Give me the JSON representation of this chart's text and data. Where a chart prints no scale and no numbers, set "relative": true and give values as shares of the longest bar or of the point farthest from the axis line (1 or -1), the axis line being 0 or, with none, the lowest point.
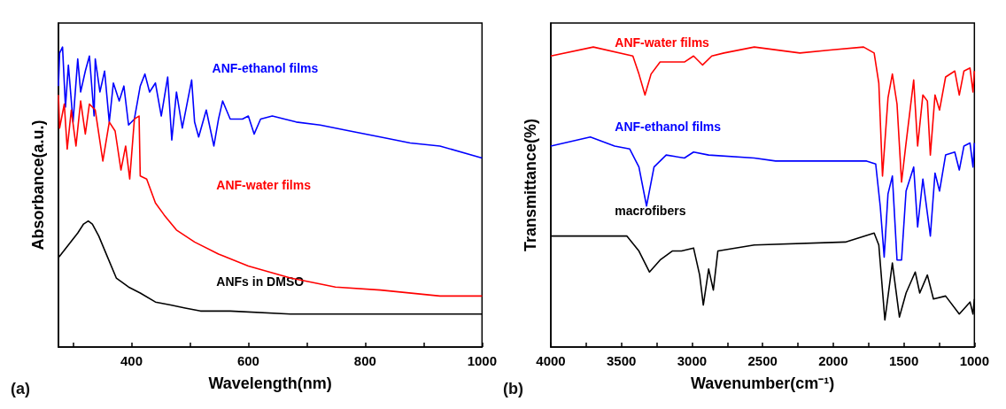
{
  "chart_data": [
    {
      "type": "line",
      "relative": true,
      "xlabel": "Wavelength(nm)",
      "ylabel": "Absorbance(a.u.)",
      "annotations": [
        "(a)"
      ],
      "xlim": [
        275,
        1000
      ],
      "xticks": [
        {
          "value": 300,
          "label": null
        },
        400,
        {
          "value": 500,
          "label": null
        },
        600,
        {
          "value": 700,
          "label": null
        },
        800,
        {
          "value": 900,
          "label": null
        },
        1000
      ],
      "marker": "none",
      "line_style": "solid",
      "legend": false,
      "series": [
        {
          "name": "ANF-ethanol films",
          "color": "#0000ff",
          "x": [
            275,
            277,
            282,
            287,
            292,
            300,
            308,
            313,
            321,
            328,
            336,
            338,
            346,
            354,
            362,
            369,
            379,
            387,
            395,
            405,
            415,
            423,
            431,
            441,
            451,
            462,
            469,
            477,
            487,
            503,
            508,
            515,
            528,
            541,
            549,
            556,
            569,
            590,
            600,
            610,
            621,
            641,
            662,
            682,
            723,
            774,
            826,
            877,
            928,
            1000
          ],
          "values": [
            0.87,
            0.98,
            1.0,
            0.8,
            0.94,
            0.75,
            0.96,
            0.85,
            0.92,
            0.97,
            0.77,
            0.96,
            0.85,
            0.92,
            0.75,
            0.88,
            0.82,
            0.87,
            0.74,
            0.76,
            0.87,
            0.91,
            0.85,
            0.88,
            0.77,
            0.9,
            0.69,
            0.85,
            0.73,
            0.89,
            0.75,
            0.7,
            0.79,
            0.67,
            0.76,
            0.82,
            0.76,
            0.76,
            0.77,
            0.71,
            0.76,
            0.77,
            0.76,
            0.75,
            0.74,
            0.72,
            0.7,
            0.68,
            0.67,
            0.63
          ]
        },
        {
          "name": "ANF-water films",
          "color": "#ff0000",
          "x": [
            275,
            277,
            285,
            290,
            297,
            305,
            313,
            321,
            328,
            338,
            351,
            362,
            372,
            382,
            390,
            397,
            405,
            413,
            415,
            426,
            441,
            456,
            477,
            508,
            549,
            600,
            672,
            749,
            826,
            928,
            1000
          ],
          "values": [
            0.84,
            0.73,
            0.81,
            0.66,
            0.79,
            0.67,
            0.82,
            0.71,
            0.81,
            0.79,
            0.62,
            0.75,
            0.72,
            0.59,
            0.67,
            0.56,
            0.76,
            0.77,
            0.57,
            0.56,
            0.48,
            0.44,
            0.39,
            0.35,
            0.31,
            0.27,
            0.23,
            0.2,
            0.19,
            0.17,
            0.17
          ]
        },
        {
          "name": "ANFs in DMSO",
          "color": "#000000",
          "x": [
            276,
            292,
            308,
            318,
            326,
            333,
            344,
            359,
            374,
            395,
            415,
            441,
            467,
            492,
            518,
            569,
            672,
            1000
          ],
          "values": [
            0.3,
            0.34,
            0.38,
            0.41,
            0.42,
            0.41,
            0.37,
            0.3,
            0.23,
            0.2,
            0.18,
            0.15,
            0.14,
            0.13,
            0.12,
            0.12,
            0.11,
            0.11
          ]
        }
      ]
    },
    {
      "type": "line",
      "relative": true,
      "xlabel": "Wavenumber(cm⁻¹)",
      "ylabel": "Transmittance(%)",
      "annotations": [
        "(b)"
      ],
      "xlim": [
        4000,
        1000
      ],
      "xticks": [
        4000,
        {
          "value": 3750,
          "label": null
        },
        3500,
        {
          "value": 3250,
          "label": null
        },
        3000,
        {
          "value": 2750,
          "label": null
        },
        2500,
        {
          "value": 2250,
          "label": null
        },
        2000,
        {
          "value": 1750,
          "label": null
        },
        1500,
        {
          "value": 1250,
          "label": null
        },
        1000
      ],
      "marker": "none",
      "line_style": "solid",
      "legend": false,
      "series": [
        {
          "name": "ANF-water films",
          "color": "#ff0000",
          "x": [
            4000,
            3699,
            3419,
            3376,
            3333,
            3290,
            3226,
            3054,
            2989,
            2925,
            2860,
            2774,
            2559,
            2236,
            2021,
            1785,
            1710,
            1677,
            1651,
            1612,
            1581,
            1548,
            1516,
            1484,
            1430,
            1402,
            1365,
            1333,
            1312,
            1279,
            1247,
            1204,
            1139,
            1107,
            1074,
            1031,
            1010,
            1000
          ],
          "values": [
            0.97,
            1.0,
            0.97,
            0.91,
            0.84,
            0.91,
            0.95,
            0.95,
            0.97,
            0.94,
            0.97,
            0.98,
            1.0,
            0.98,
            0.99,
            1.0,
            0.98,
            0.88,
            0.57,
            0.83,
            0.91,
            0.81,
            0.55,
            0.68,
            0.89,
            0.67,
            0.84,
            0.82,
            0.64,
            0.84,
            0.79,
            0.9,
            0.92,
            0.84,
            0.92,
            0.93,
            0.85,
            0.92
          ]
        },
        {
          "name": "ANF-ethanol films",
          "color": "#0000ff",
          "x": [
            4000,
            3720,
            3548,
            3441,
            3376,
            3322,
            3269,
            3183,
            3054,
            2989,
            2882,
            2559,
            2408,
            2021,
            1763,
            1699,
            1667,
            1639,
            1612,
            1581,
            1548,
            1516,
            1484,
            1430,
            1402,
            1365,
            1312,
            1279,
            1247,
            1204,
            1139,
            1107,
            1074,
            1031,
            1010,
            1000
          ],
          "values": [
            0.67,
            0.7,
            0.67,
            0.66,
            0.6,
            0.47,
            0.6,
            0.64,
            0.63,
            0.65,
            0.64,
            0.63,
            0.62,
            0.62,
            0.62,
            0.61,
            0.47,
            0.3,
            0.51,
            0.57,
            0.29,
            0.29,
            0.52,
            0.6,
            0.4,
            0.56,
            0.37,
            0.58,
            0.52,
            0.64,
            0.65,
            0.59,
            0.67,
            0.68,
            0.6,
            0.68
          ]
        },
        {
          "name": "macrofibers",
          "color": "#000000",
          "x": [
            4000,
            3462,
            3376,
            3301,
            3226,
            3140,
            3075,
            2989,
            2946,
            2920,
            2882,
            2849,
            2817,
            2559,
            1914,
            1710,
            1677,
            1634,
            1581,
            1531,
            1484,
            1419,
            1387,
            1333,
            1290,
            1204,
            1107,
            1031,
            1010,
            1000
          ],
          "values": [
            0.37,
            0.37,
            0.32,
            0.25,
            0.29,
            0.32,
            0.32,
            0.33,
            0.24,
            0.14,
            0.26,
            0.19,
            0.32,
            0.34,
            0.35,
            0.38,
            0.34,
            0.09,
            0.28,
            0.1,
            0.18,
            0.25,
            0.18,
            0.24,
            0.16,
            0.17,
            0.11,
            0.15,
            0.11,
            0.16
          ]
        }
      ]
    }
  ]
}
